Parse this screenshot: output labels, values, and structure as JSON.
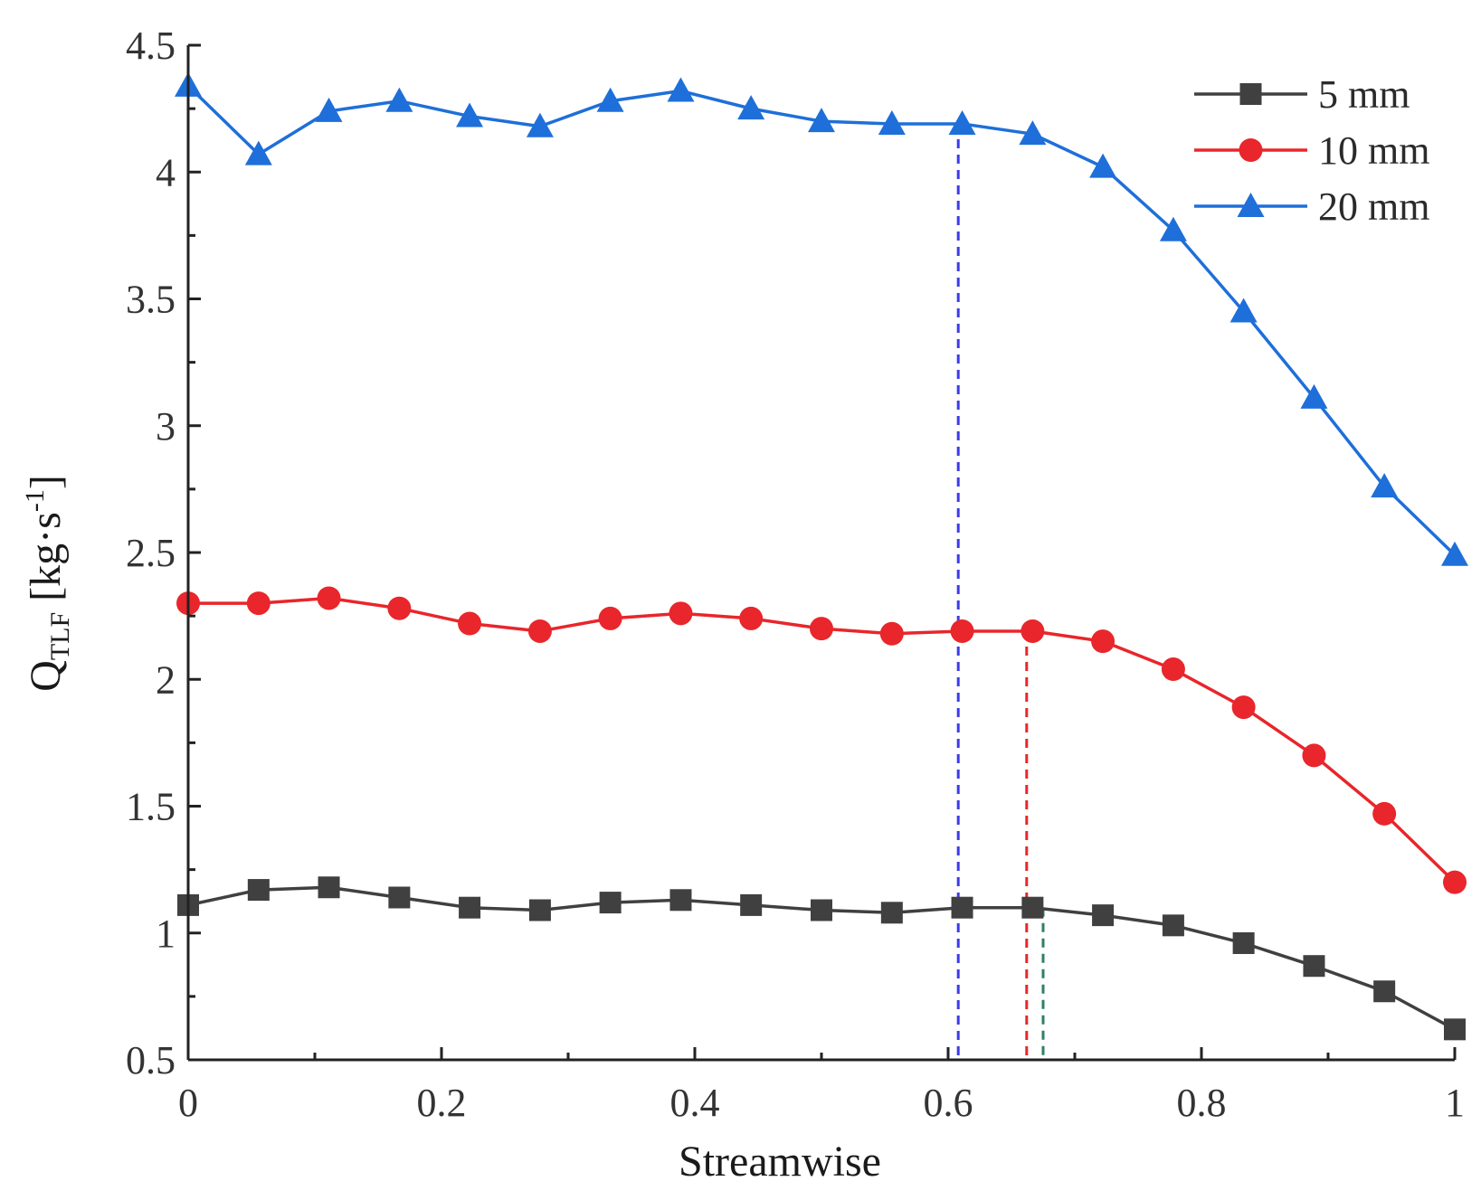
{
  "chart_data": {
    "type": "line",
    "title": "",
    "xlabel": "Streamwise",
    "ylabel": {
      "base": "Q",
      "subscript": "TLF",
      "units_prefix": " [kg·s",
      "units_sup": "-1",
      "units_suffix": "]"
    },
    "xlim": [
      0,
      1
    ],
    "ylim": [
      0.5,
      4.5
    ],
    "xticks": [
      0,
      0.2,
      0.4,
      0.6,
      0.8,
      1
    ],
    "xtick_labels": [
      "0",
      "0.2",
      "0.4",
      "0.6",
      "0.8",
      "1"
    ],
    "yticks": [
      0.5,
      1,
      1.5,
      2,
      2.5,
      3,
      3.5,
      4,
      4.5
    ],
    "ytick_labels": [
      "0.5",
      "1",
      "1.5",
      "2",
      "2.5",
      "3",
      "3.5",
      "4",
      "4.5"
    ],
    "grid": false,
    "legend_position": "top-right",
    "x": [
      0,
      0.0556,
      0.1111,
      0.1667,
      0.2222,
      0.2778,
      0.3333,
      0.3889,
      0.4444,
      0.5,
      0.5556,
      0.6111,
      0.6667,
      0.7222,
      0.7778,
      0.8333,
      0.8889,
      0.9444,
      1
    ],
    "series": [
      {
        "name": "5 mm",
        "color": "#404040",
        "marker": "square",
        "values": [
          1.11,
          1.17,
          1.18,
          1.14,
          1.1,
          1.09,
          1.12,
          1.13,
          1.11,
          1.09,
          1.08,
          1.1,
          1.1,
          1.07,
          1.03,
          0.96,
          0.87,
          0.77,
          0.62
        ]
      },
      {
        "name": "10 mm",
        "color": "#e8262b",
        "marker": "circle",
        "values": [
          2.3,
          2.3,
          2.32,
          2.28,
          2.22,
          2.19,
          2.24,
          2.26,
          2.24,
          2.2,
          2.18,
          2.19,
          2.19,
          2.15,
          2.04,
          1.89,
          1.7,
          1.47,
          1.2
        ]
      },
      {
        "name": "20 mm",
        "color": "#1e6fd9",
        "marker": "triangle",
        "values": [
          4.34,
          4.07,
          4.24,
          4.28,
          4.22,
          4.18,
          4.28,
          4.32,
          4.25,
          4.2,
          4.19,
          4.19,
          4.15,
          4.02,
          3.77,
          3.45,
          3.11,
          2.76,
          2.49
        ]
      }
    ],
    "annotations": [
      {
        "type": "vline",
        "x": 0.608,
        "y_top": 4.19,
        "color": "#3b3bea",
        "style": "dashed"
      },
      {
        "type": "vline",
        "x": 0.662,
        "y_top": 2.19,
        "color": "#e8262b",
        "style": "dashed"
      },
      {
        "type": "vline",
        "x": 0.675,
        "y_top": 1.1,
        "color": "#2f7f6a",
        "style": "dashed"
      }
    ]
  }
}
